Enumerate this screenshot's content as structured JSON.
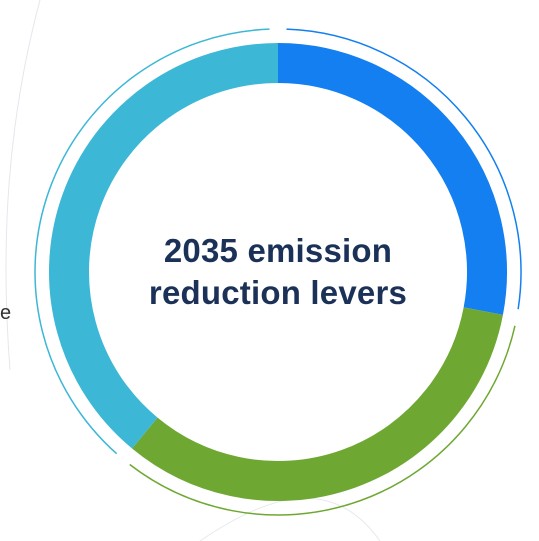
{
  "center_label": {
    "line1": "2035 emission",
    "line2": "reduction levers"
  },
  "edge_text": "e",
  "colors": {
    "segment_blue": "#137ff0",
    "segment_green": "#6ea832",
    "segment_cyan": "#3db7d6",
    "title_text": "#1b3157"
  },
  "chart_data": {
    "type": "pie",
    "variant": "donut",
    "title": "",
    "categories": [
      "",
      "",
      ""
    ],
    "values": [
      28,
      33,
      39
    ],
    "colors": [
      "#137ff0",
      "#6ea832",
      "#3db7d6"
    ],
    "legend": "none"
  }
}
